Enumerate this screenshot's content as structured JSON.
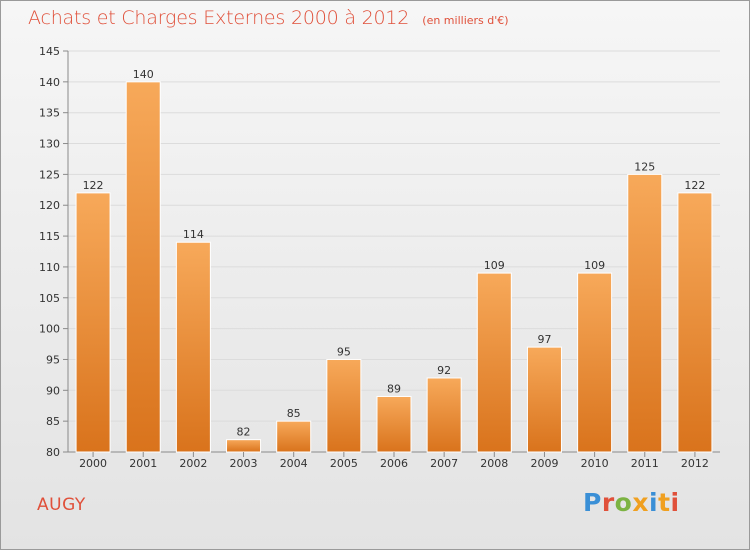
{
  "header": {
    "title": "Achats et Charges Externes 2000 à 2012",
    "unit": "(en milliers d'€)"
  },
  "footer": {
    "commune": "AUGY",
    "logo_text": "Proxiti",
    "logo_colors": [
      "#3a8fd6",
      "#e0503a",
      "#7cb342",
      "#f0a020",
      "#3a8fd6",
      "#f0a020",
      "#e0503a"
    ]
  },
  "colors": {
    "bar_top": "#f7a95a",
    "bar_bottom": "#d9731c",
    "title": "#e0503a",
    "axis": "#8a8a8a"
  },
  "chart_data": {
    "type": "bar",
    "categories": [
      "2000",
      "2001",
      "2002",
      "2003",
      "2004",
      "2005",
      "2006",
      "2007",
      "2008",
      "2009",
      "2010",
      "2011",
      "2012"
    ],
    "values": [
      122,
      140,
      114,
      82,
      85,
      95,
      89,
      92,
      109,
      97,
      109,
      125,
      122
    ],
    "title": "Achats et Charges Externes 2000 à 2012",
    "xlabel": "",
    "ylabel": "",
    "ylim": [
      80,
      145
    ],
    "yticks": [
      80,
      85,
      90,
      95,
      100,
      105,
      110,
      115,
      120,
      125,
      130,
      135,
      140,
      145
    ],
    "grid": true,
    "data_labels": true
  }
}
